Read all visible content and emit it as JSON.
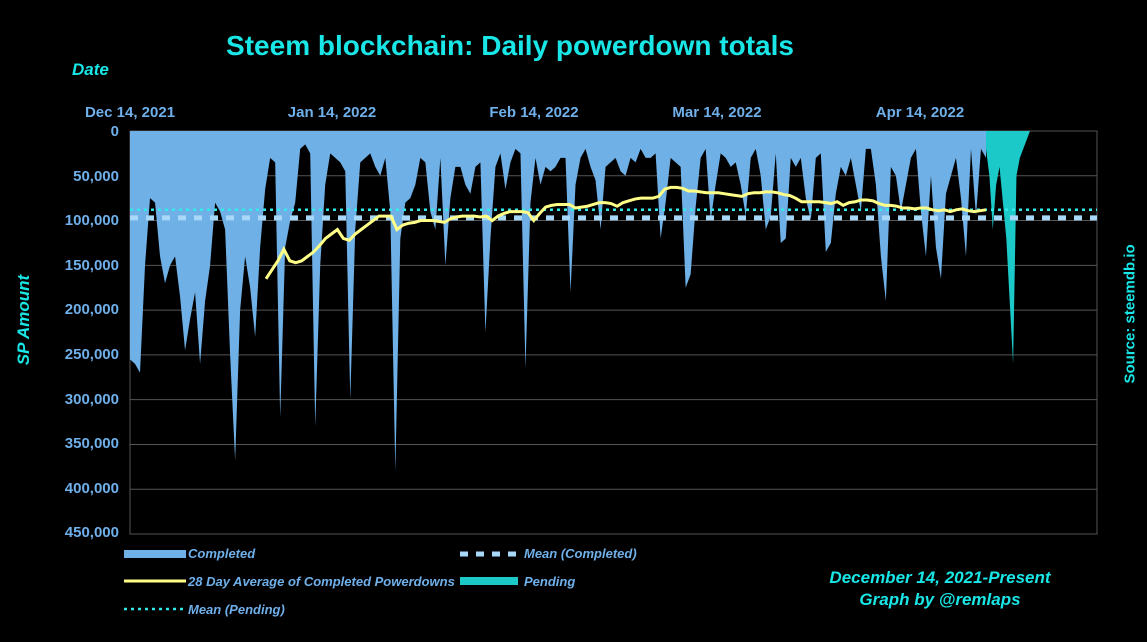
{
  "chart_data": {
    "type": "area",
    "title": "Steem blockchain: Daily powerdown totals",
    "xlabel": "Date",
    "ylabel": "SP Amount",
    "source": "Source: steemdb.io",
    "credit_line1": "December 14, 2021-Present",
    "credit_line2": "Graph by @remlaps",
    "x_ticks": [
      "Dec 14, 2021",
      "Jan 14, 2022",
      "Feb 14, 2022",
      "Mar 14, 2022",
      "Apr 14, 2022"
    ],
    "y_ticks": [
      "0",
      "50,000",
      "100,000",
      "150,000",
      "200,000",
      "250,000",
      "300,000",
      "350,000",
      "400,000",
      "450,000"
    ],
    "ylim": [
      0,
      450000
    ],
    "y_inverted": true,
    "grid": true,
    "legend_placement": "bottom",
    "colors": {
      "completed": "#6fb0e6",
      "pending": "#1cc9c9",
      "avg": "#ffff88",
      "mean_completed": "#a8d8f8",
      "mean_pending": "#33eaea",
      "text": "#6fb0ea",
      "title": "#19e6e6"
    },
    "series": [
      {
        "name": "Completed",
        "kind": "area",
        "start_day": "2021-12-14",
        "values": [
          255000,
          260000,
          270000,
          150000,
          75000,
          80000,
          140000,
          170000,
          150000,
          140000,
          185000,
          245000,
          210000,
          180000,
          260000,
          190000,
          150000,
          80000,
          90000,
          110000,
          250000,
          368000,
          200000,
          140000,
          175000,
          230000,
          130000,
          65000,
          30000,
          35000,
          320000,
          130000,
          100000,
          80000,
          20000,
          15000,
          25000,
          330000,
          150000,
          60000,
          25000,
          30000,
          35000,
          45000,
          300000,
          110000,
          35000,
          30000,
          25000,
          40000,
          50000,
          30000,
          90000,
          380000,
          120000,
          80000,
          75000,
          60000,
          30000,
          35000,
          90000,
          110000,
          30000,
          150000,
          75000,
          40000,
          40000,
          60000,
          70000,
          40000,
          35000,
          225000,
          120000,
          40000,
          25000,
          65000,
          35000,
          20000,
          25000,
          265000,
          80000,
          30000,
          60000,
          40000,
          45000,
          40000,
          30000,
          30000,
          180000,
          60000,
          30000,
          20000,
          40000,
          55000,
          110000,
          40000,
          35000,
          30000,
          45000,
          50000,
          30000,
          35000,
          20000,
          30000,
          30000,
          25000,
          120000,
          80000,
          30000,
          35000,
          40000,
          175000,
          160000,
          85000,
          30000,
          20000,
          100000,
          60000,
          25000,
          30000,
          40000,
          35000,
          60000,
          95000,
          30000,
          20000,
          50000,
          110000,
          95000,
          25000,
          125000,
          120000,
          30000,
          40000,
          30000,
          75000,
          100000,
          30000,
          25000,
          135000,
          125000,
          70000,
          40000,
          50000,
          30000,
          60000,
          90000,
          20000,
          20000,
          60000,
          140000,
          190000,
          40000,
          50000,
          90000,
          60000,
          30000,
          20000,
          90000,
          140000,
          50000,
          130000,
          165000,
          70000,
          50000,
          30000,
          75000,
          140000,
          20000,
          95000,
          20000,
          30000
        ]
      },
      {
        "name": "Pending",
        "kind": "area",
        "values": [
          20000,
          50000,
          110000,
          60000,
          40000,
          80000,
          120000,
          190000,
          260000,
          50000,
          30000,
          20000,
          10000,
          0
        ]
      },
      {
        "name": "28 Day Average of Completed Powerdowns",
        "kind": "line",
        "values": [
          165000,
          155000,
          145000,
          132000,
          145000,
          147000,
          145000,
          140000,
          135000,
          128000,
          120000,
          115000,
          110000,
          120000,
          122000,
          115000,
          110000,
          105000,
          100000,
          95000,
          95000,
          95000,
          110000,
          105000,
          103000,
          102000,
          100000,
          100000,
          100000,
          101000,
          102000,
          98000,
          96000,
          95000,
          95000,
          95000,
          96000,
          95000,
          100000,
          95000,
          92000,
          90000,
          90000,
          90000,
          91000,
          100000,
          92000,
          85000,
          83000,
          82000,
          82000,
          82000,
          86000,
          85000,
          84000,
          82000,
          80000,
          80000,
          81000,
          84000,
          80000,
          78000,
          76000,
          75000,
          75000,
          75000,
          73000,
          65000,
          63000,
          63000,
          64000,
          67000,
          67000,
          68000,
          69000,
          69000,
          69000,
          70000,
          71000,
          72000,
          73000,
          70000,
          69000,
          69000,
          68000,
          68000,
          69000,
          71000,
          72000,
          75000,
          79000,
          79000,
          79000,
          79000,
          80000,
          81000,
          79000,
          83000,
          80000,
          79000,
          77000,
          77000,
          78000,
          81000,
          83000,
          83000,
          84000,
          86000,
          86000,
          87000,
          86000,
          86000,
          88000,
          89000,
          88000,
          90000,
          88000,
          87000,
          89000,
          90000,
          89000,
          88000
        ]
      },
      {
        "name": "Mean (Completed)",
        "kind": "hline",
        "value": 97000
      },
      {
        "name": "Mean (Pending)",
        "kind": "hline",
        "value": 88000
      }
    ]
  }
}
